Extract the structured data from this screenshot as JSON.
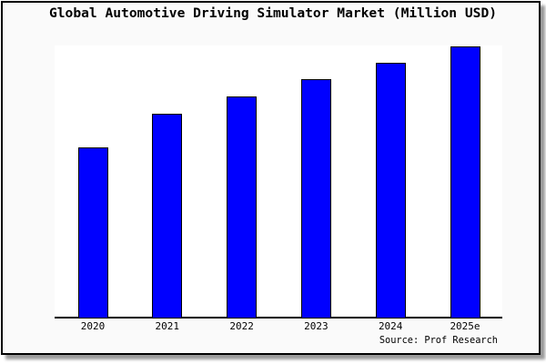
{
  "window": {
    "background_color": "#fafafa",
    "border_color": "#000000",
    "plot_background_color": "#ffffff"
  },
  "chart_data": {
    "type": "bar",
    "title": "Global Automotive Driving Simulator Market (Million USD)",
    "categories": [
      "2020",
      "2021",
      "2022",
      "2023",
      "2024",
      "2025e"
    ],
    "values": [
      62.9,
      75.4,
      81.6,
      88.0,
      94.0,
      100.0
    ],
    "value_scale_note": "no y-axis or value labels are shown in the image; values are relative bar heights with the tallest bar (2025e) = 100",
    "xlabel": "",
    "ylabel": "",
    "ylim": [
      0,
      100.3
    ],
    "grid": false,
    "legend": null,
    "x_axis_line": true,
    "y_axis_line": false,
    "bar_color": "#0000ff",
    "bar_border_color": "#000000"
  },
  "source": {
    "label": "Source: Prof Research"
  }
}
